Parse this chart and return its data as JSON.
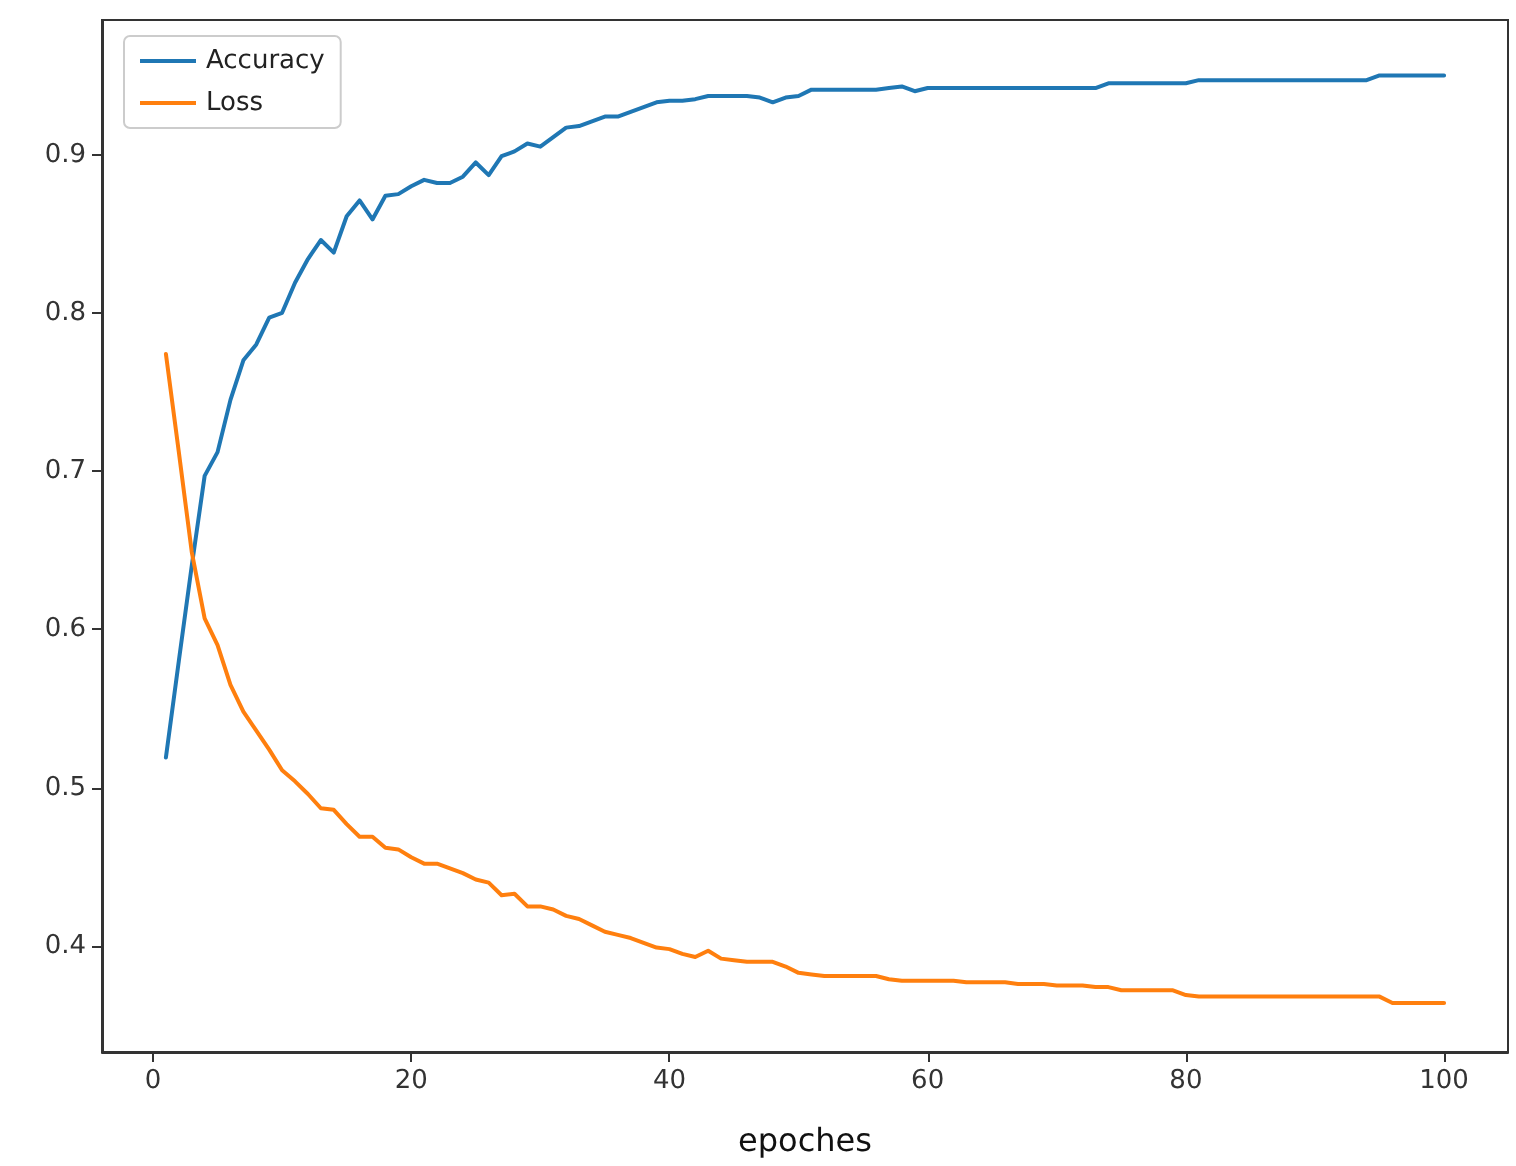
{
  "chart_data": {
    "type": "line",
    "xlabel": "epoches",
    "x": [
      1,
      2,
      3,
      4,
      5,
      6,
      7,
      8,
      9,
      10,
      11,
      12,
      13,
      14,
      15,
      16,
      17,
      18,
      19,
      20,
      21,
      22,
      23,
      24,
      25,
      26,
      27,
      28,
      29,
      30,
      31,
      32,
      33,
      34,
      35,
      36,
      37,
      38,
      39,
      40,
      41,
      42,
      43,
      44,
      45,
      46,
      47,
      48,
      49,
      50,
      51,
      52,
      53,
      54,
      55,
      56,
      57,
      58,
      59,
      60,
      61,
      62,
      63,
      64,
      65,
      66,
      67,
      68,
      69,
      70,
      71,
      72,
      73,
      74,
      75,
      76,
      77,
      78,
      79,
      80,
      81,
      82,
      83,
      84,
      85,
      86,
      87,
      88,
      89,
      90,
      91,
      92,
      93,
      94,
      95,
      96,
      97,
      98,
      99,
      100
    ],
    "series": [
      {
        "name": "Accuracy",
        "color": "#1f77b4",
        "values": [
          0.519,
          0.58,
          0.64,
          0.697,
          0.712,
          0.745,
          0.77,
          0.78,
          0.797,
          0.8,
          0.819,
          0.834,
          0.846,
          0.838,
          0.861,
          0.871,
          0.859,
          0.874,
          0.875,
          0.88,
          0.884,
          0.882,
          0.882,
          0.886,
          0.895,
          0.887,
          0.899,
          0.902,
          0.907,
          0.905,
          0.911,
          0.917,
          0.918,
          0.921,
          0.924,
          0.924,
          0.927,
          0.93,
          0.933,
          0.934,
          0.934,
          0.935,
          0.937,
          0.937,
          0.937,
          0.937,
          0.936,
          0.933,
          0.936,
          0.937,
          0.941,
          0.941,
          0.941,
          0.941,
          0.941,
          0.941,
          0.942,
          0.943,
          0.94,
          0.942,
          0.942,
          0.942,
          0.942,
          0.942,
          0.942,
          0.942,
          0.942,
          0.942,
          0.942,
          0.942,
          0.942,
          0.942,
          0.942,
          0.945,
          0.945,
          0.945,
          0.945,
          0.945,
          0.945,
          0.945,
          0.947,
          0.947,
          0.947,
          0.947,
          0.947,
          0.947,
          0.947,
          0.947,
          0.947,
          0.947,
          0.947,
          0.947,
          0.947,
          0.947,
          0.95,
          0.95,
          0.95,
          0.95,
          0.95,
          0.95
        ]
      },
      {
        "name": "Loss",
        "color": "#ff7f0e",
        "values": [
          0.774,
          0.712,
          0.649,
          0.607,
          0.59,
          0.565,
          0.548,
          0.536,
          0.524,
          0.511,
          0.504,
          0.496,
          0.487,
          0.486,
          0.477,
          0.469,
          0.469,
          0.462,
          0.461,
          0.456,
          0.452,
          0.452,
          0.449,
          0.446,
          0.442,
          0.44,
          0.432,
          0.433,
          0.425,
          0.425,
          0.423,
          0.419,
          0.417,
          0.413,
          0.409,
          0.407,
          0.405,
          0.402,
          0.399,
          0.398,
          0.395,
          0.393,
          0.397,
          0.392,
          0.391,
          0.39,
          0.39,
          0.39,
          0.387,
          0.383,
          0.382,
          0.381,
          0.381,
          0.381,
          0.381,
          0.381,
          0.379,
          0.378,
          0.378,
          0.378,
          0.378,
          0.378,
          0.377,
          0.377,
          0.377,
          0.377,
          0.376,
          0.376,
          0.376,
          0.375,
          0.375,
          0.375,
          0.374,
          0.374,
          0.372,
          0.372,
          0.372,
          0.372,
          0.372,
          0.369,
          0.368,
          0.368,
          0.368,
          0.368,
          0.368,
          0.368,
          0.368,
          0.368,
          0.368,
          0.368,
          0.368,
          0.368,
          0.368,
          0.368,
          0.368,
          0.364,
          0.364,
          0.364,
          0.364,
          0.364
        ]
      }
    ],
    "xlim": [
      -3.95,
      104.95
    ],
    "xticks": [
      0,
      20,
      40,
      60,
      80,
      100
    ],
    "ylim": [
      0.333,
      0.985
    ],
    "yticks": [
      0.4,
      0.5,
      0.6,
      0.7,
      0.8,
      0.9
    ],
    "legend": "top left",
    "marker": "none",
    "line_style": "solid"
  }
}
